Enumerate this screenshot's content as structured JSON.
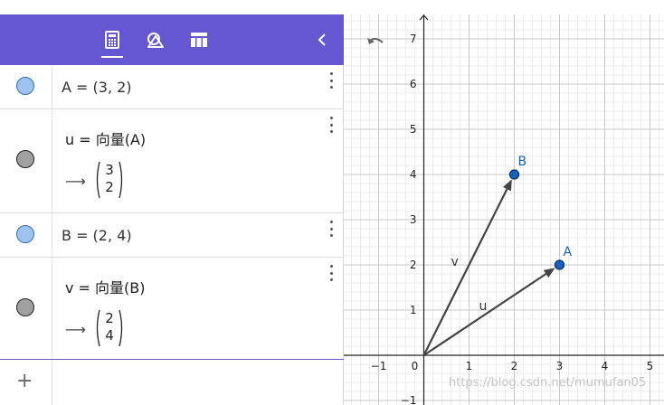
{
  "toolbar": {
    "tabs": [
      {
        "name": "algebra-tab-icon",
        "active": true
      },
      {
        "name": "geometry-tools-tab-icon",
        "active": false
      },
      {
        "name": "table-tab-icon",
        "active": false
      }
    ],
    "collapse_icon": "chevron-left-icon",
    "bg": "#6557d2"
  },
  "algebra": {
    "rows": [
      {
        "id": "A",
        "text": "A = (3, 2)",
        "marble": "#9dc3ef"
      },
      {
        "id": "u",
        "def": "u = 向量(A)",
        "result_arrow": "⟶",
        "vector": [
          "3",
          "2"
        ],
        "marble": "#a0a0a0"
      },
      {
        "id": "B",
        "text": "B = (2, 4)",
        "marble": "#9dc3ef"
      },
      {
        "id": "v",
        "def": "v = 向量(B)",
        "result_arrow": "⟶",
        "vector": [
          "2",
          "4"
        ],
        "marble": "#a0a0a0"
      }
    ],
    "input_placeholder": "",
    "add_label": "+"
  },
  "graphics": {
    "undo_icon": "undo-icon",
    "x_ticks": [
      "−1",
      "0",
      "1",
      "2",
      "3",
      "4",
      "5"
    ],
    "y_ticks": [
      "7",
      "6",
      "5",
      "4",
      "3",
      "2",
      "1",
      "−1"
    ],
    "points": [
      {
        "label": "A",
        "x": 3,
        "y": 2,
        "color": "#1565c0"
      },
      {
        "label": "B",
        "x": 2,
        "y": 4,
        "color": "#1565c0"
      }
    ],
    "vectors": [
      {
        "label": "u",
        "to": [
          3,
          2
        ]
      },
      {
        "label": "v",
        "to": [
          2,
          4
        ]
      }
    ],
    "watermark": "https://blog.csdn.net/mumufan05"
  }
}
